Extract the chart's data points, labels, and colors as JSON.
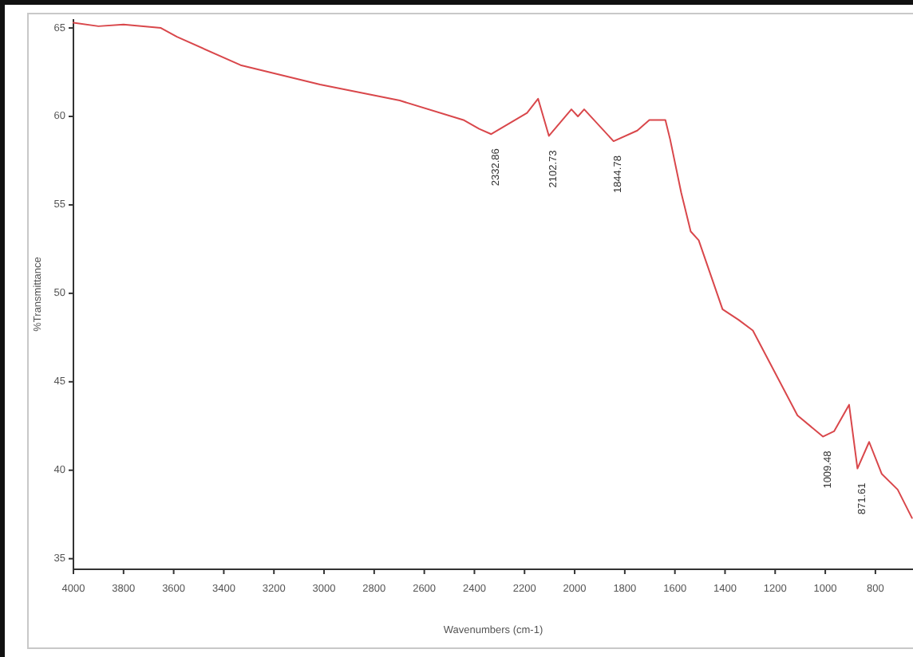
{
  "chart_data": {
    "type": "line",
    "xlabel": "Wavenumbers (cm-1)",
    "ylabel": "%Transmittance",
    "x": [
      4000,
      3900,
      3800,
      3651,
      3587,
      3333,
      3016,
      2698,
      2444,
      2381,
      2332.86,
      2190,
      2146,
      2102.73,
      2013,
      1987,
      1962,
      1844.78,
      1750,
      1702,
      1638,
      1619,
      1575,
      1537,
      1505,
      1410,
      1346,
      1289,
      1111,
      1009.48,
      965,
      905,
      871.61,
      825,
      775,
      711,
      654
    ],
    "series": [
      {
        "color": "#d9474b",
        "values": [
          65.3,
          65.1,
          65.2,
          65.0,
          64.5,
          62.9,
          61.8,
          60.9,
          59.8,
          59.3,
          59.0,
          60.2,
          61.0,
          58.9,
          60.4,
          60.0,
          60.4,
          58.6,
          59.2,
          59.8,
          59.8,
          58.7,
          55.7,
          53.5,
          53.0,
          49.1,
          48.5,
          47.9,
          43.1,
          41.9,
          42.2,
          43.7,
          40.1,
          41.6,
          39.8,
          38.9,
          37.3
        ]
      }
    ],
    "xlim": [
      4000,
      650
    ],
    "ylim": [
      34.4,
      65.5
    ],
    "xticks": [
      4000,
      3800,
      3600,
      3400,
      3200,
      3000,
      2800,
      2600,
      2400,
      2200,
      2000,
      1800,
      1600,
      1400,
      1200,
      1000,
      800
    ],
    "yticks": [
      35,
      40,
      45,
      50,
      55,
      60,
      65
    ],
    "annotations": [
      {
        "text": "2332.86",
        "x": 2332.86,
        "y": 59.0
      },
      {
        "text": "2102.73",
        "x": 2102.73,
        "y": 58.9
      },
      {
        "text": "1844.78",
        "x": 1844.78,
        "y": 58.6
      },
      {
        "text": "1009.48",
        "x": 1009.48,
        "y": 41.9
      },
      {
        "text": "871.61",
        "x": 871.61,
        "y": 40.1
      }
    ]
  }
}
